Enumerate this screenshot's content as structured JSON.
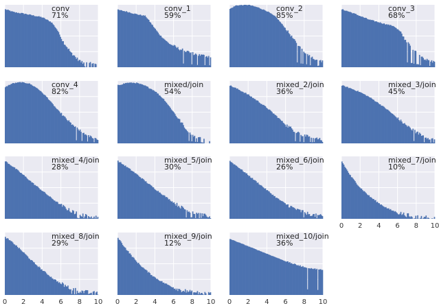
{
  "chart_data": {
    "type": "histogram-grid",
    "x_ticks": [
      "0",
      "2",
      "4",
      "6",
      "8",
      "10"
    ],
    "xlim": [
      0,
      10
    ],
    "y_ticks_visible": false,
    "grid": true,
    "colors": {
      "bars": "#4c72b0",
      "panel_background": "#eaeaf2",
      "grid": "#ffffff"
    },
    "panels": [
      {
        "label": "conv",
        "percent": "71%",
        "shape": "conv",
        "show_xticks": false
      },
      {
        "label": "conv_1",
        "percent": "59%",
        "shape": "conv_1",
        "show_xticks": false
      },
      {
        "label": "conv_2",
        "percent": "85%",
        "shape": "conv_2",
        "show_xticks": false
      },
      {
        "label": "conv_3",
        "percent": "68%",
        "shape": "conv_3",
        "show_xticks": false
      },
      {
        "label": "conv_4",
        "percent": "82%",
        "shape": "conv_4",
        "show_xticks": false
      },
      {
        "label": "mixed/join",
        "percent": "54%",
        "shape": "mixed",
        "show_xticks": false
      },
      {
        "label": "mixed_2/join",
        "percent": "36%",
        "shape": "mixed_2",
        "show_xticks": false
      },
      {
        "label": "mixed_3/join",
        "percent": "45%",
        "shape": "mixed_3",
        "show_xticks": false
      },
      {
        "label": "mixed_4/join",
        "percent": "28%",
        "shape": "mixed_4",
        "show_xticks": false
      },
      {
        "label": "mixed_5/join",
        "percent": "30%",
        "shape": "mixed_5",
        "show_xticks": false
      },
      {
        "label": "mixed_6/join",
        "percent": "26%",
        "shape": "mixed_6",
        "show_xticks": false
      },
      {
        "label": "mixed_7/join",
        "percent": "10%",
        "shape": "mixed_7",
        "show_xticks": true
      },
      {
        "label": "mixed_8/join",
        "percent": "29%",
        "shape": "mixed_8",
        "show_xticks": true
      },
      {
        "label": "mixed_9/join",
        "percent": "12%",
        "shape": "mixed_9",
        "show_xticks": true
      },
      {
        "label": "mixed_10/join",
        "percent": "36%",
        "shape": "mixed_10",
        "show_xticks": true
      }
    ]
  }
}
